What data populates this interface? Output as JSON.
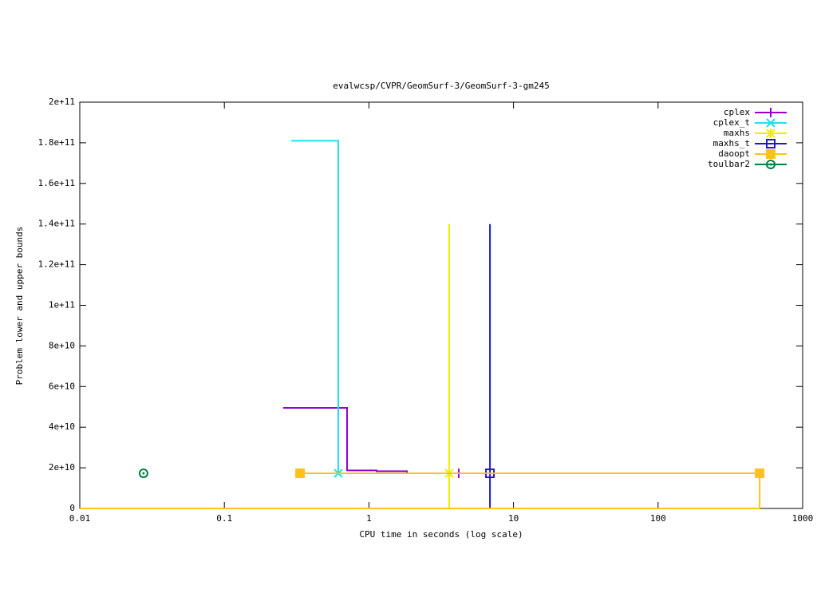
{
  "chart_data": {
    "type": "line",
    "title": "evalwcsp/CVPR/GeomSurf-3/GeomSurf-3-gm245",
    "x_label": "CPU time in seconds (log scale)",
    "y_label": "Problem lower and upper bounds",
    "xlog": true,
    "xlim": [
      0.01,
      1000
    ],
    "xticks": [
      0.01,
      0.1,
      1,
      10,
      100,
      1000
    ],
    "ylim": [
      0,
      200000000000
    ],
    "yticks": [
      {
        "value": 0,
        "label": "0"
      },
      {
        "value": 20000000000,
        "label": "2e+10"
      },
      {
        "value": 40000000000,
        "label": "4e+10"
      },
      {
        "value": 60000000000,
        "label": "6e+10"
      },
      {
        "value": 80000000000,
        "label": "8e+10"
      },
      {
        "value": 100000000000,
        "label": "1e+11"
      },
      {
        "value": 120000000000,
        "label": "1.2e+11"
      },
      {
        "value": 140000000000,
        "label": "1.4e+11"
      },
      {
        "value": 160000000000,
        "label": "1.6e+11"
      },
      {
        "value": 180000000000,
        "label": "1.8e+11"
      },
      {
        "value": 200000000000,
        "label": "2e+11"
      }
    ],
    "legend": "top-right",
    "series": [
      {
        "name": "cplex",
        "color": "#9400d3",
        "marker": "plus",
        "x": [
          0.255,
          0.706,
          0.706,
          1.13,
          1.13,
          1.83,
          1.83,
          4.18
        ],
        "values": [
          49500000000,
          49500000000,
          18700000000,
          18700000000,
          18300000000,
          18300000000,
          17300000000,
          17300000000
        ],
        "marker_x": [
          4.18
        ],
        "marker_values": [
          17300000000
        ]
      },
      {
        "name": "cplex_t",
        "color": "#20e0f0",
        "marker": "cross",
        "x": [
          0.29,
          0.614,
          0.614
        ],
        "values": [
          181000000000,
          181000000000,
          17300000000
        ],
        "marker_x": [
          0.614
        ],
        "marker_values": [
          17300000000
        ]
      },
      {
        "name": "maxhs",
        "color": "#eeee00",
        "marker": "star",
        "x": [
          3.59,
          3.59
        ],
        "values": [
          140000000000,
          0
        ],
        "marker_x": [
          3.59
        ],
        "marker_values": [
          17300000000
        ]
      },
      {
        "name": "maxhs_t",
        "color": "#1c1cc0",
        "marker": "square-open",
        "x": [
          6.87,
          6.87
        ],
        "values": [
          140000000000,
          0
        ],
        "marker_x": [
          6.87
        ],
        "marker_values": [
          17300000000
        ]
      },
      {
        "name": "daoopt",
        "color": "#ffc020",
        "marker": "square",
        "x": [
          0.334,
          504,
          504,
          0.01
        ],
        "values": [
          17300000000,
          17300000000,
          0,
          0
        ],
        "marker_x": [
          0.334,
          504
        ],
        "marker_values": [
          17300000000,
          17300000000
        ]
      },
      {
        "name": "toulbar2",
        "color": "#008040",
        "marker": "circle",
        "x": [],
        "values": [],
        "marker_x": [
          0.0276
        ],
        "marker_values": [
          17300000000
        ]
      }
    ]
  }
}
